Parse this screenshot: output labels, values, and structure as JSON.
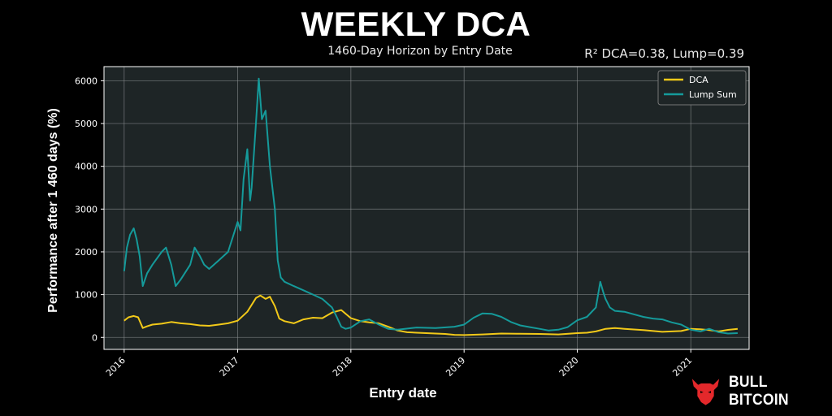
{
  "header": {
    "title": "WEEKLY DCA",
    "subtitle": "1460-Day Horizon by Entry Date",
    "r2_note": "R² DCA=0.38, Lump=0.39"
  },
  "brand": {
    "name": "BULL BITCOIN",
    "icon": "bull-head-icon",
    "icon_color": "#e3282b"
  },
  "chart_data": {
    "type": "line",
    "xlabel": "Entry date",
    "ylabel": "Performance after 1 460 days (%)",
    "x_ticks": [
      "2016",
      "2017",
      "2018",
      "2019",
      "2020",
      "2021"
    ],
    "y_ticks": [
      0,
      1000,
      2000,
      3000,
      4000,
      5000,
      6000
    ],
    "xlim": [
      "2015-10-28",
      "2021-07-08"
    ],
    "ylim": [
      -280,
      6330
    ],
    "grid": true,
    "legend_position": "top-right",
    "background": "#1e2526",
    "series": [
      {
        "name": "DCA",
        "color": "#f2c919",
        "points": [
          [
            "2016-01-01",
            390
          ],
          [
            "2016-01-15",
            470
          ],
          [
            "2016-02-01",
            500
          ],
          [
            "2016-02-15",
            470
          ],
          [
            "2016-03-01",
            220
          ],
          [
            "2016-03-15",
            260
          ],
          [
            "2016-04-01",
            300
          ],
          [
            "2016-05-01",
            320
          ],
          [
            "2016-06-01",
            360
          ],
          [
            "2016-07-01",
            330
          ],
          [
            "2016-08-01",
            310
          ],
          [
            "2016-09-01",
            280
          ],
          [
            "2016-10-01",
            270
          ],
          [
            "2016-11-01",
            300
          ],
          [
            "2016-12-01",
            330
          ],
          [
            "2017-01-01",
            390
          ],
          [
            "2017-02-01",
            600
          ],
          [
            "2017-03-01",
            920
          ],
          [
            "2017-03-15",
            980
          ],
          [
            "2017-04-01",
            900
          ],
          [
            "2017-04-15",
            950
          ],
          [
            "2017-05-01",
            730
          ],
          [
            "2017-05-15",
            440
          ],
          [
            "2017-06-01",
            380
          ],
          [
            "2017-07-01",
            330
          ],
          [
            "2017-08-01",
            420
          ],
          [
            "2017-09-01",
            460
          ],
          [
            "2017-10-01",
            450
          ],
          [
            "2017-11-01",
            580
          ],
          [
            "2017-12-01",
            640
          ],
          [
            "2018-01-01",
            450
          ],
          [
            "2018-02-01",
            380
          ],
          [
            "2018-03-01",
            350
          ],
          [
            "2018-04-01",
            330
          ],
          [
            "2018-05-01",
            250
          ],
          [
            "2018-06-01",
            160
          ],
          [
            "2018-07-01",
            120
          ],
          [
            "2018-08-01",
            110
          ],
          [
            "2018-09-01",
            100
          ],
          [
            "2018-10-01",
            90
          ],
          [
            "2018-11-01",
            80
          ],
          [
            "2018-12-01",
            60
          ],
          [
            "2019-01-01",
            55
          ],
          [
            "2019-03-01",
            70
          ],
          [
            "2019-05-01",
            90
          ],
          [
            "2019-07-01",
            85
          ],
          [
            "2019-09-01",
            80
          ],
          [
            "2019-11-01",
            70
          ],
          [
            "2020-01-01",
            100
          ],
          [
            "2020-02-01",
            110
          ],
          [
            "2020-03-01",
            140
          ],
          [
            "2020-04-01",
            200
          ],
          [
            "2020-05-01",
            220
          ],
          [
            "2020-06-01",
            200
          ],
          [
            "2020-08-01",
            170
          ],
          [
            "2020-10-01",
            130
          ],
          [
            "2020-12-01",
            150
          ],
          [
            "2021-01-01",
            200
          ],
          [
            "2021-02-01",
            190
          ],
          [
            "2021-03-01",
            170
          ],
          [
            "2021-04-01",
            140
          ],
          [
            "2021-05-01",
            175
          ],
          [
            "2021-06-01",
            200
          ]
        ]
      },
      {
        "name": "Lump Sum",
        "color": "#159a9a",
        "points": [
          [
            "2016-01-01",
            1550
          ],
          [
            "2016-01-10",
            2100
          ],
          [
            "2016-01-20",
            2400
          ],
          [
            "2016-02-01",
            2550
          ],
          [
            "2016-02-10",
            2300
          ],
          [
            "2016-02-20",
            1900
          ],
          [
            "2016-03-01",
            1200
          ],
          [
            "2016-03-15",
            1500
          ],
          [
            "2016-04-01",
            1700
          ],
          [
            "2016-05-01",
            2000
          ],
          [
            "2016-05-15",
            2100
          ],
          [
            "2016-06-01",
            1700
          ],
          [
            "2016-06-15",
            1200
          ],
          [
            "2016-07-01",
            1350
          ],
          [
            "2016-08-01",
            1700
          ],
          [
            "2016-08-15",
            2100
          ],
          [
            "2016-09-01",
            1900
          ],
          [
            "2016-09-15",
            1700
          ],
          [
            "2016-10-01",
            1600
          ],
          [
            "2016-11-01",
            1800
          ],
          [
            "2016-12-01",
            2000
          ],
          [
            "2017-01-01",
            2700
          ],
          [
            "2017-01-10",
            2500
          ],
          [
            "2017-01-20",
            3700
          ],
          [
            "2017-02-01",
            4400
          ],
          [
            "2017-02-10",
            3200
          ],
          [
            "2017-02-15",
            3500
          ],
          [
            "2017-03-01",
            5000
          ],
          [
            "2017-03-10",
            6050
          ],
          [
            "2017-03-20",
            5100
          ],
          [
            "2017-04-01",
            5300
          ],
          [
            "2017-04-15",
            4000
          ],
          [
            "2017-05-01",
            3000
          ],
          [
            "2017-05-10",
            1800
          ],
          [
            "2017-05-20",
            1400
          ],
          [
            "2017-06-01",
            1300
          ],
          [
            "2017-07-01",
            1200
          ],
          [
            "2017-08-01",
            1100
          ],
          [
            "2017-09-01",
            1000
          ],
          [
            "2017-10-01",
            900
          ],
          [
            "2017-11-01",
            700
          ],
          [
            "2017-11-15",
            500
          ],
          [
            "2017-12-01",
            250
          ],
          [
            "2017-12-15",
            200
          ],
          [
            "2018-01-01",
            230
          ],
          [
            "2018-02-01",
            380
          ],
          [
            "2018-03-01",
            420
          ],
          [
            "2018-04-01",
            300
          ],
          [
            "2018-05-01",
            200
          ],
          [
            "2018-06-01",
            180
          ],
          [
            "2018-08-01",
            230
          ],
          [
            "2018-10-01",
            220
          ],
          [
            "2018-12-01",
            250
          ],
          [
            "2019-01-01",
            300
          ],
          [
            "2019-02-01",
            460
          ],
          [
            "2019-03-01",
            560
          ],
          [
            "2019-04-01",
            550
          ],
          [
            "2019-05-01",
            480
          ],
          [
            "2019-06-01",
            360
          ],
          [
            "2019-07-01",
            280
          ],
          [
            "2019-08-01",
            240
          ],
          [
            "2019-09-01",
            200
          ],
          [
            "2019-10-01",
            160
          ],
          [
            "2019-11-01",
            180
          ],
          [
            "2019-12-01",
            240
          ],
          [
            "2020-01-01",
            400
          ],
          [
            "2020-02-01",
            480
          ],
          [
            "2020-03-01",
            700
          ],
          [
            "2020-03-15",
            1300
          ],
          [
            "2020-03-25",
            1050
          ],
          [
            "2020-04-01",
            900
          ],
          [
            "2020-04-15",
            700
          ],
          [
            "2020-05-01",
            620
          ],
          [
            "2020-06-01",
            600
          ],
          [
            "2020-07-01",
            540
          ],
          [
            "2020-08-01",
            480
          ],
          [
            "2020-09-01",
            440
          ],
          [
            "2020-10-01",
            420
          ],
          [
            "2020-11-01",
            350
          ],
          [
            "2020-12-01",
            300
          ],
          [
            "2021-01-01",
            180
          ],
          [
            "2021-02-01",
            140
          ],
          [
            "2021-03-01",
            200
          ],
          [
            "2021-04-01",
            120
          ],
          [
            "2021-05-01",
            90
          ],
          [
            "2021-06-01",
            100
          ]
        ]
      }
    ]
  }
}
